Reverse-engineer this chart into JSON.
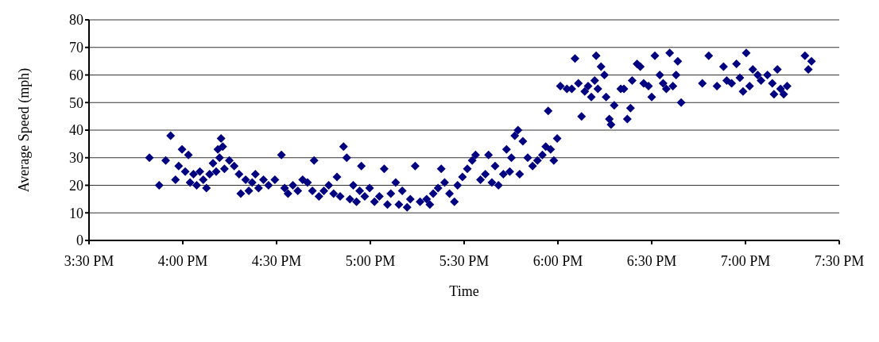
{
  "chart_data": {
    "type": "scatter",
    "xlabel": "Time",
    "ylabel": "Average Speed (mph)",
    "x": [
      15.822,
      15.874,
      15.909,
      15.935,
      15.961,
      15.978,
      15.996,
      16.013,
      16.03,
      16.039,
      16.057,
      16.074,
      16.091,
      16.109,
      16.126,
      16.143,
      16.161,
      16.178,
      16.187,
      16.196,
      16.204,
      16.213,
      16.222,
      16.248,
      16.274,
      16.3,
      16.309,
      16.335,
      16.352,
      16.37,
      16.387,
      16.404,
      16.43,
      16.457,
      16.491,
      16.526,
      16.543,
      16.561,
      16.587,
      16.613,
      16.639,
      16.665,
      16.691,
      16.7,
      16.726,
      16.752,
      16.778,
      16.804,
      16.822,
      16.839,
      16.857,
      16.874,
      16.891,
      16.909,
      16.926,
      16.943,
      16.952,
      16.97,
      16.996,
      17.022,
      17.048,
      17.074,
      17.091,
      17.109,
      17.135,
      17.152,
      17.17,
      17.196,
      17.213,
      17.239,
      17.265,
      17.3,
      17.317,
      17.335,
      17.361,
      17.378,
      17.396,
      17.422,
      17.448,
      17.465,
      17.491,
      17.517,
      17.543,
      17.561,
      17.587,
      17.613,
      17.63,
      17.648,
      17.665,
      17.683,
      17.709,
      17.726,
      17.743,
      17.752,
      17.77,
      17.787,
      17.796,
      17.813,
      17.839,
      17.865,
      17.891,
      17.917,
      17.935,
      17.948,
      17.961,
      17.978,
      17.996,
      18.013,
      18.048,
      18.074,
      18.091,
      18.109,
      18.126,
      18.143,
      18.161,
      18.178,
      18.196,
      18.204,
      18.213,
      18.23,
      18.248,
      18.257,
      18.274,
      18.283,
      18.3,
      18.335,
      18.352,
      18.37,
      18.387,
      18.396,
      18.422,
      18.439,
      18.457,
      18.483,
      18.5,
      18.517,
      18.543,
      18.561,
      18.578,
      18.596,
      18.613,
      18.63,
      18.639,
      18.657,
      18.77,
      18.804,
      18.848,
      18.883,
      18.9,
      18.926,
      18.952,
      18.97,
      18.987,
      19.004,
      19.022,
      19.039,
      19.065,
      19.083,
      19.117,
      19.143,
      19.152,
      19.17,
      19.187,
      19.204,
      19.222,
      19.317,
      19.335,
      19.352
    ],
    "series": [
      {
        "color": "#000080",
        "values": [
          30,
          20,
          29,
          38,
          22,
          27,
          33,
          25,
          31,
          21,
          24,
          20,
          25,
          22,
          19,
          24,
          28,
          25,
          33,
          30,
          37,
          34,
          26,
          29,
          27,
          24,
          17,
          22,
          18,
          21,
          24,
          19,
          22,
          20,
          22,
          31,
          19,
          17,
          20,
          18,
          22,
          21,
          18,
          29,
          16,
          18,
          20,
          17,
          23,
          16,
          34,
          30,
          15,
          20,
          14,
          18,
          27,
          16,
          19,
          14,
          16,
          26,
          13,
          17,
          21,
          13,
          18,
          12,
          15,
          27,
          14,
          15,
          13,
          17,
          19,
          26,
          21,
          17,
          14,
          20,
          23,
          26,
          29,
          31,
          22,
          24,
          31,
          21,
          27,
          20,
          24,
          33,
          25,
          30,
          38,
          40,
          24,
          36,
          30,
          27,
          29,
          31,
          34,
          47,
          33,
          29,
          37,
          56,
          55,
          55,
          66,
          57,
          45,
          54,
          56,
          52,
          58,
          67,
          55,
          63,
          60,
          52,
          44,
          42,
          49,
          55,
          55,
          44,
          48,
          58,
          64,
          63,
          57,
          56,
          52,
          67,
          60,
          57,
          55,
          68,
          56,
          60,
          65,
          50,
          57,
          67,
          56,
          63,
          58,
          57,
          64,
          59,
          54,
          68,
          56,
          62,
          60,
          58,
          60,
          57,
          53,
          62,
          55,
          53,
          56,
          67,
          62,
          65
        ]
      }
    ],
    "xlim": [
      15.5,
      19.5
    ],
    "xticks": [
      {
        "value": 15.5,
        "label": "3:30 PM"
      },
      {
        "value": 16,
        "label": "4:00 PM"
      },
      {
        "value": 16.5,
        "label": "4:30 PM"
      },
      {
        "value": 17,
        "label": "5:00 PM"
      },
      {
        "value": 17.5,
        "label": "5:30 PM"
      },
      {
        "value": 18,
        "label": "6:00 PM"
      },
      {
        "value": 18.5,
        "label": "6:30 PM"
      },
      {
        "value": 19,
        "label": "7:00 PM"
      },
      {
        "value": 19.5,
        "label": "7:30 PM"
      }
    ],
    "ylim": [
      0,
      80
    ],
    "yticks": [
      0,
      10,
      20,
      30,
      40,
      50,
      60,
      70,
      80
    ],
    "grid": "y",
    "marker": "diamond"
  }
}
